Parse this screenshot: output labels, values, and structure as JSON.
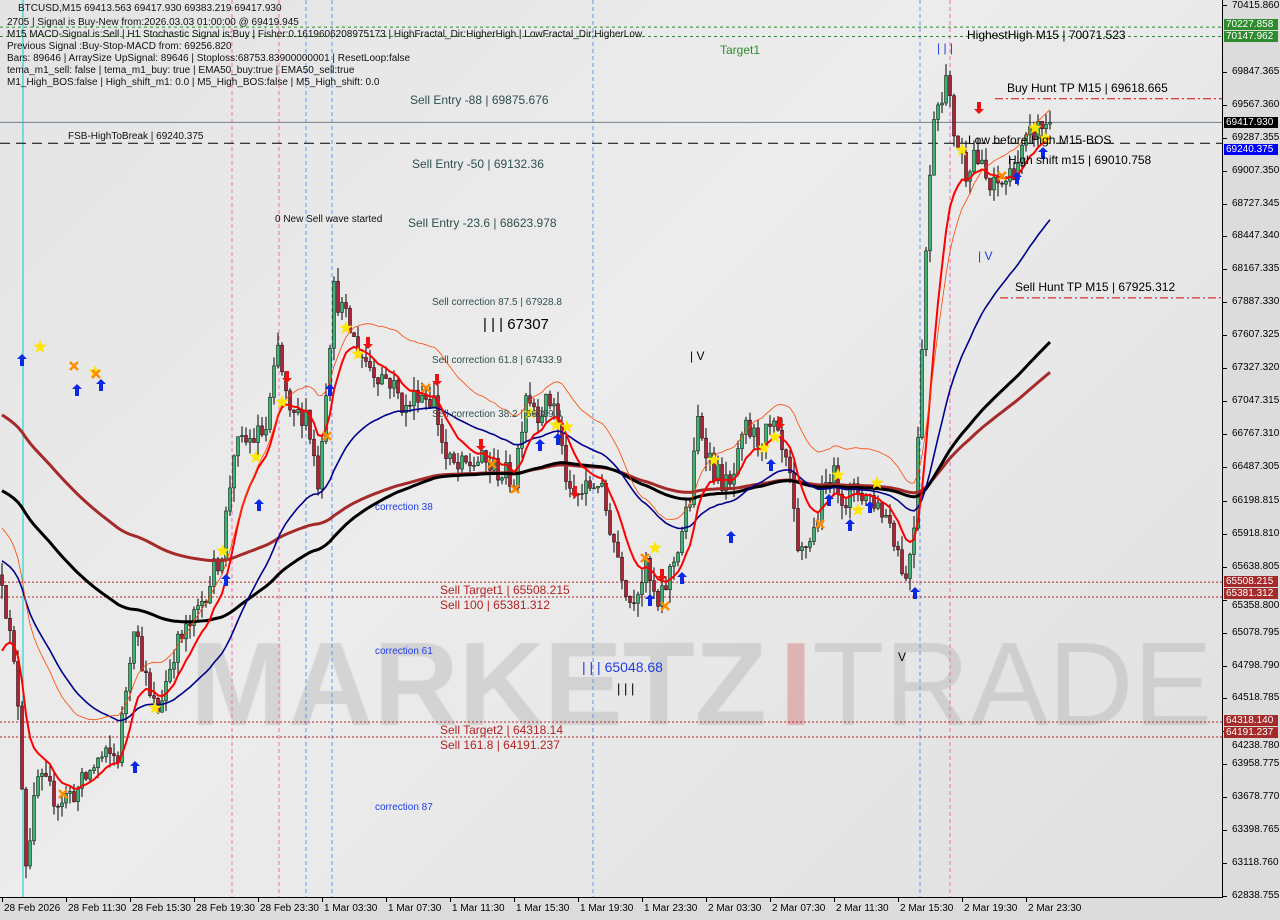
{
  "header": {
    "symbol_line": "BTCUSD,M15  69413.563 69417.930 69383.219 69417.930",
    "info_lines": [
      "2705 | Signal is Buy-New from:2026.03.03 01:00:00 @ 69419.945",
      "M15 MACD-Signal is:Sell | H1 Stochastic Signal is:Buy | Fisher:0.1619606208975173 | HighFractal_Dir:HigherHigh | LowFractal_Dir:HigherLow",
      "Previous Signal :Buy-Stop-MACD from: 69256.820",
      "Bars: 89646 | ArraySize UpSignal: 89646 | Stoploss:68753.83900000001 | ResetLoop:false",
      "tema_m1_sell: false | tema_m1_buy: true | EMA50_buy:true | EMA50_sell:true",
      "M1_High_BOS:false | High_shift_m1: 0.0 | M5_High_BOS:false | M5_High_shift: 0.0"
    ]
  },
  "annotations": {
    "target1": "Target1",
    "sell_entry_88": "Sell Entry -88 | 69875.676",
    "fsb": "FSB-HighToBreak | 69240.375",
    "sell_entry_50": "Sell Entry -50 | 69132.36",
    "new_wave": "0 New Sell wave started",
    "sell_entry_236": "Sell Entry -23.6 | 68623.978",
    "corr_875": "Sell correction 87.5 | 67928.8",
    "wave_67307": "| | | 67307",
    "corr_618": "Sell correction 61.8 | 67433.9",
    "corr_382": "Sell correction 38.2 | 66989.4",
    "correction38": "correction 38",
    "sell_target1": "Sell Target1 | 65508.215",
    "sell_100": "Sell 100 | 65381.312",
    "correction61": "correction 61",
    "wave_65048": "| | | 65048.68",
    "wave_iii": "| | |",
    "sell_target2": "Sell Target2 | 64318.14",
    "sell_1618": "Sell 161.8 | 64191.237",
    "correction87": "correction 87",
    "highest_high": "HighestHigh   M15 | 70071.523",
    "buy_hunt_tp": "Buy Hunt TP M15 | 69618.665",
    "low_before_high": "Low before High   M15-BOS",
    "high_shift": "High shift m15 | 69010.758",
    "sell_hunt_tp": "Sell Hunt TP M15 | 67925.312",
    "wave_iv_1": "| V",
    "wave_iii_2": "| | |",
    "wave_iv_2": "| V",
    "wave_v": "V",
    "watermark": "MARKETZ I TRADE"
  },
  "chart_data": {
    "type": "candlestick",
    "symbol": "BTCUSD",
    "timeframe": "M15",
    "ylim": [
      62838.755,
      70415.86
    ],
    "y_ticks": [
      "70415.860",
      "69847.365",
      "69567.360",
      "69287.355",
      "69007.350",
      "68727.345",
      "68447.340",
      "68167.335",
      "67887.330",
      "67607.325",
      "67327.320",
      "67047.315",
      "66767.310",
      "66487.305",
      "66198.815",
      "65918.810",
      "65638.805",
      "65358.800",
      "65078.795",
      "64798.790",
      "64518.785",
      "64238.780",
      "63958.775",
      "63678.770",
      "63398.765",
      "63118.760",
      "62838.755"
    ],
    "x_ticks": [
      "28 Feb 2026",
      "28 Feb 11:30",
      "28 Feb 15:30",
      "28 Feb 19:30",
      "28 Feb 23:30",
      "1 Mar 03:30",
      "1 Mar 07:30",
      "1 Mar 11:30",
      "1 Mar 15:30",
      "1 Mar 19:30",
      "1 Mar 23:30",
      "2 Mar 03:30",
      "2 Mar 07:30",
      "2 Mar 11:30",
      "2 Mar 15:30",
      "2 Mar 19:30",
      "2 Mar 23:30"
    ],
    "price_tags": [
      {
        "value": "70227.858",
        "color": "#2e8b2e"
      },
      {
        "value": "70147.962",
        "color": "#2e8b2e"
      },
      {
        "value": "69417.930",
        "color": "#000000"
      },
      {
        "value": "69240.375",
        "color": "#0000ff"
      },
      {
        "value": "65508.215",
        "color": "#a52a2a"
      },
      {
        "value": "65381.312",
        "color": "#a52a2a"
      },
      {
        "value": "64318.140",
        "color": "#a52a2a"
      },
      {
        "value": "64191.237",
        "color": "#a52a2a"
      }
    ],
    "levels": {
      "green_1": 70227.858,
      "green_2": 70147.962,
      "buy_hunt_tp": 69618.665,
      "current": 69417.93,
      "fsb": 69240.375,
      "sell_hunt_tp": 67925.312,
      "sell_target1": 65508.215,
      "sell_100": 65381.312,
      "sell_target2": 64318.14,
      "sell_1618": 64191.237
    },
    "close_approx": [
      [
        "2026-02-28T07:30",
        65569
      ],
      [
        "2026-02-28T08:30",
        64505
      ],
      [
        "2026-02-28T09:00",
        63145
      ],
      [
        "2026-02-28T09:45",
        63825
      ],
      [
        "2026-02-28T11:00",
        63655
      ],
      [
        "2026-02-28T12:15",
        63740
      ],
      [
        "2026-02-28T13:30",
        63995
      ],
      [
        "2026-02-28T14:45",
        64037
      ],
      [
        "2026-02-28T15:45",
        65185
      ],
      [
        "2026-02-28T16:45",
        64505
      ],
      [
        "2026-02-28T17:15",
        64420
      ],
      [
        "2026-02-28T18:15",
        64930
      ],
      [
        "2026-02-28T19:30",
        65185
      ],
      [
        "2026-02-28T20:30",
        65525
      ],
      [
        "2026-02-28T21:15",
        65780
      ],
      [
        "2026-02-28T22:00",
        66630
      ],
      [
        "2026-02-28T23:00",
        66715
      ],
      [
        "2026-03-01T00:00",
        66800
      ],
      [
        "2026-03-01T00:45",
        67480
      ],
      [
        "2026-03-01T01:30",
        66885
      ],
      [
        "2026-03-01T02:30",
        66970
      ],
      [
        "2026-03-01T03:15",
        66375
      ],
      [
        "2026-03-01T04:15",
        67990
      ],
      [
        "2026-03-01T05:00",
        67735
      ],
      [
        "2026-03-01T05:45",
        67480
      ],
      [
        "2026-03-01T06:45",
        67310
      ],
      [
        "2026-03-01T07:45",
        67225
      ],
      [
        "2026-03-01T08:45",
        66970
      ],
      [
        "2026-03-01T09:30",
        67140
      ],
      [
        "2026-03-01T10:30",
        67055
      ],
      [
        "2026-03-01T11:15",
        66545
      ],
      [
        "2026-03-01T12:00",
        66460
      ],
      [
        "2026-03-01T13:15",
        66545
      ],
      [
        "2026-03-01T14:30",
        66460
      ],
      [
        "2026-03-01T15:30",
        66375
      ],
      [
        "2026-03-01T16:15",
        67140
      ],
      [
        "2026-03-01T17:00",
        66970
      ],
      [
        "2026-03-01T18:00",
        67055
      ],
      [
        "2026-03-01T19:00",
        66205
      ],
      [
        "2026-03-01T20:00",
        66290
      ],
      [
        "2026-03-01T20:45",
        66375
      ],
      [
        "2026-03-01T21:45",
        65865
      ],
      [
        "2026-03-01T22:45",
        65355
      ],
      [
        "2026-03-01T23:45",
        65610
      ],
      [
        "2026-03-02T00:30",
        65270
      ],
      [
        "2026-03-02T01:30",
        65695
      ],
      [
        "2026-03-02T02:30",
        66205
      ],
      [
        "2026-03-02T03:00",
        66885
      ],
      [
        "2026-03-02T04:00",
        66460
      ],
      [
        "2026-03-02T05:00",
        66290
      ],
      [
        "2026-03-02T06:00",
        66800
      ],
      [
        "2026-03-02T06:45",
        66715
      ],
      [
        "2026-03-02T07:45",
        66800
      ],
      [
        "2026-03-02T08:45",
        66375
      ],
      [
        "2026-03-02T09:15",
        65695
      ],
      [
        "2026-03-02T10:15",
        65950
      ],
      [
        "2026-03-02T11:15",
        66460
      ],
      [
        "2026-03-02T12:15",
        66205
      ],
      [
        "2026-03-02T13:00",
        66290
      ],
      [
        "2026-03-02T14:00",
        66205
      ],
      [
        "2026-03-02T15:00",
        66035
      ],
      [
        "2026-03-02T16:00",
        65525
      ],
      [
        "2026-03-02T16:30",
        66035
      ],
      [
        "2026-03-02T17:15",
        68330
      ],
      [
        "2026-03-02T17:45",
        69520
      ],
      [
        "2026-03-02T18:30",
        69775
      ],
      [
        "2026-03-02T19:00",
        69350
      ],
      [
        "2026-03-02T19:45",
        69010
      ],
      [
        "2026-03-02T20:15",
        69180
      ],
      [
        "2026-03-02T21:15",
        68840
      ],
      [
        "2026-03-02T22:15",
        68925
      ],
      [
        "2026-03-02T23:00",
        69095
      ],
      [
        "2026-03-03T00:00",
        69350
      ],
      [
        "2026-03-03T01:00",
        69418
      ]
    ],
    "colors": {
      "up": "#3cb371",
      "down": "#b22234",
      "ema_fast": "#ff0000",
      "ema_mid": "#00008b",
      "ma_slow": "#000000",
      "ma_long": "#a52a2a"
    }
  }
}
